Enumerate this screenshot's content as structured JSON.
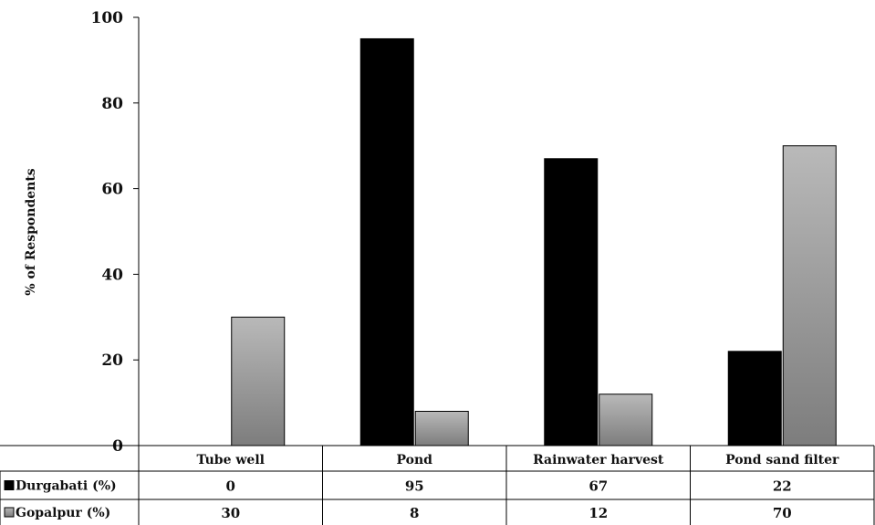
{
  "chart_data": {
    "type": "bar",
    "ylabel": "% of Respondents",
    "xlabel": "",
    "ylim": [
      0,
      100
    ],
    "yticks": [
      0,
      20,
      40,
      60,
      80,
      100
    ],
    "categories": [
      "Tube well",
      "Pond",
      "Rainwater harvest",
      "Pond sand filter"
    ],
    "series": [
      {
        "name": "Durgabati (%)",
        "values": [
          0,
          95,
          67,
          22
        ],
        "color": "#000000"
      },
      {
        "name": "Gopalpur (%)",
        "values": [
          30,
          8,
          12,
          70
        ],
        "color": "#9a9a9a"
      }
    ],
    "grid": false,
    "legend": "data-table"
  }
}
